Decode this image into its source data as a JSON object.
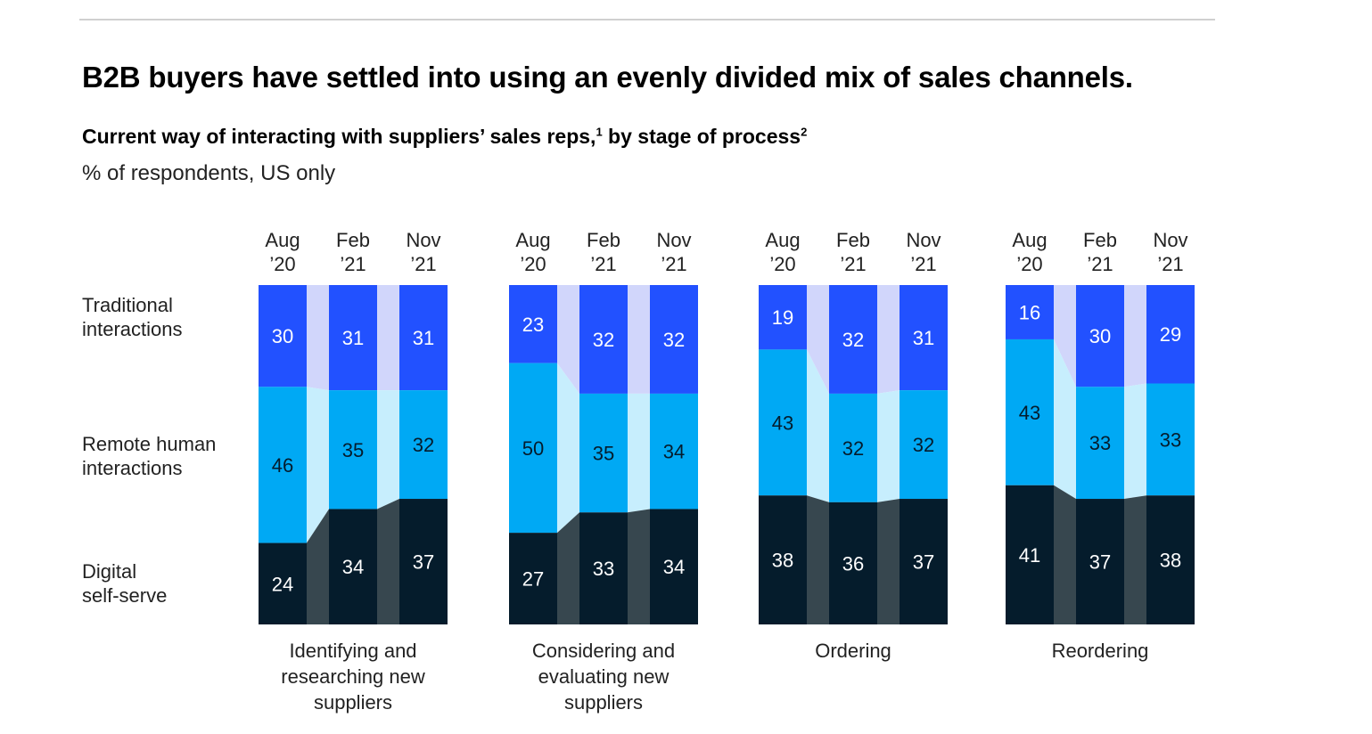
{
  "title": "B2B buyers have settled into using an evenly divided mix of sales channels.",
  "subtitle": {
    "text1": "Current way of interacting with suppliers’ sales reps,",
    "fn1": "1",
    "text2": " by stage of process",
    "fn2": "2"
  },
  "unit": "% of respondents, US only",
  "chart_data": {
    "type": "bar",
    "stacked": true,
    "periods": [
      [
        "Aug",
        "’20"
      ],
      [
        "Feb",
        "’21"
      ],
      [
        "Nov",
        "’21"
      ]
    ],
    "row_labels": [
      [
        "Traditional",
        "interactions"
      ],
      [
        "Remote human",
        "interactions"
      ],
      [
        "Digital",
        "self-serve"
      ]
    ],
    "colors": {
      "traditional": "#2251ff",
      "remote": "#00a9f4",
      "digital": "#051c2c",
      "traditional_link": "#d1d6fb",
      "remote_link": "#c7eefd",
      "digital_link": "#37474f"
    },
    "groups": [
      {
        "label": [
          "Identifying and",
          "researching new",
          "suppliers"
        ],
        "series": [
          {
            "name": "Traditional interactions",
            "values": [
              30,
              31,
              31
            ]
          },
          {
            "name": "Remote human interactions",
            "values": [
              46,
              35,
              32
            ]
          },
          {
            "name": "Digital self-serve",
            "values": [
              24,
              34,
              37
            ]
          }
        ]
      },
      {
        "label": [
          "Considering and",
          "evaluating new",
          "suppliers"
        ],
        "series": [
          {
            "name": "Traditional interactions",
            "values": [
              23,
              32,
              32
            ]
          },
          {
            "name": "Remote human interactions",
            "values": [
              50,
              35,
              34
            ]
          },
          {
            "name": "Digital self-serve",
            "values": [
              27,
              33,
              34
            ]
          }
        ]
      },
      {
        "label": [
          "Ordering"
        ],
        "series": [
          {
            "name": "Traditional interactions",
            "values": [
              19,
              32,
              31
            ]
          },
          {
            "name": "Remote human interactions",
            "values": [
              43,
              32,
              32
            ]
          },
          {
            "name": "Digital self-serve",
            "values": [
              38,
              36,
              37
            ]
          }
        ]
      },
      {
        "label": [
          "Reordering"
        ],
        "series": [
          {
            "name": "Traditional interactions",
            "values": [
              16,
              30,
              29
            ]
          },
          {
            "name": "Remote human interactions",
            "values": [
              43,
              33,
              33
            ]
          },
          {
            "name": "Digital self-serve",
            "values": [
              41,
              37,
              38
            ]
          }
        ]
      }
    ]
  }
}
